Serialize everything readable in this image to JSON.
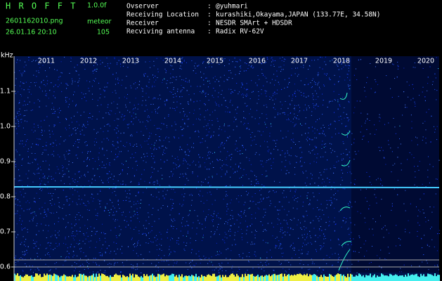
{
  "header": {
    "title": "H R O F F T",
    "version": "1.0.0f",
    "filename": "2601162010.png",
    "mode": "meteor",
    "datetime": "26.01.16 20:10",
    "count": "105"
  },
  "info": {
    "separator": ":",
    "rows": [
      {
        "label": "Ovserver",
        "value": "@yuhmari"
      },
      {
        "label": "Receiving Location",
        "value": "kurashiki,Okayama,JAPAN (133.77E, 34.58N)"
      },
      {
        "label": "Receiver",
        "value": "NESDR SMArt + HDSDR"
      },
      {
        "label": "Recviving antenna",
        "value": "Radix RV-62V"
      }
    ]
  },
  "axis": {
    "unit": "kHz",
    "yticks": [
      "1.1",
      "1.0",
      "0.9",
      "0.8",
      "0.7",
      "0.6"
    ],
    "xlabels": [
      "2011",
      "2012",
      "2013",
      "2014",
      "2015",
      "2016",
      "2017",
      "2018",
      "2019",
      "2020"
    ]
  }
}
